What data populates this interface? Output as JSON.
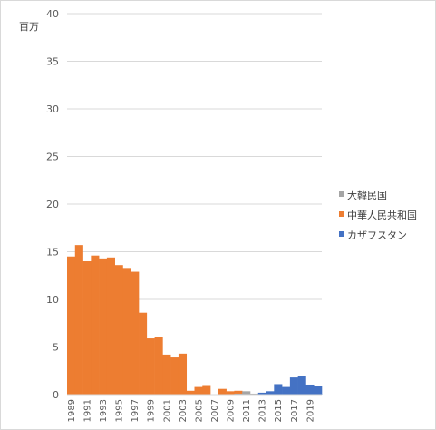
{
  "chart_data": {
    "type": "bar",
    "stacked": true,
    "ylabel": "百万",
    "ylim": [
      0,
      40
    ],
    "yticks": [
      0,
      5,
      10,
      15,
      20,
      25,
      30,
      35,
      40
    ],
    "grid": true,
    "legend_position": "right",
    "x": [
      1989,
      1990,
      1991,
      1992,
      1993,
      1994,
      1995,
      1996,
      1997,
      1998,
      1999,
      2000,
      2001,
      2002,
      2003,
      2004,
      2005,
      2006,
      2007,
      2008,
      2009,
      2010,
      2011,
      2012,
      2013,
      2014,
      2015,
      2016,
      2017,
      2018,
      2019,
      2020
    ],
    "xtick_labels": [
      "1989",
      "1991",
      "1993",
      "1995",
      "1997",
      "1999",
      "2001",
      "2003",
      "2005",
      "2007",
      "2009",
      "2011",
      "2013",
      "2015",
      "2017",
      "2019"
    ],
    "series": [
      {
        "name": "大韓民国",
        "color": "#a5a5a5",
        "values": [
          0,
          0,
          0,
          0,
          0,
          0,
          0,
          0,
          0,
          0,
          0,
          0,
          0,
          0,
          0,
          0,
          0,
          0,
          0,
          0,
          0.05,
          0.1,
          0.35,
          0.1,
          0,
          0,
          0,
          0,
          0,
          0,
          0,
          0
        ]
      },
      {
        "name": "中華人民共和国",
        "color": "#ed7d31",
        "values": [
          14.5,
          15.7,
          14.0,
          14.6,
          14.3,
          14.4,
          13.6,
          13.3,
          12.9,
          8.6,
          5.9,
          6.0,
          4.2,
          3.9,
          4.3,
          0.4,
          0.8,
          1.0,
          0,
          0.6,
          0.3,
          0.3,
          0,
          0,
          0,
          0,
          0,
          0,
          0,
          0,
          0,
          0
        ]
      },
      {
        "name": "カザフスタン",
        "color": "#4472c4",
        "values": [
          0,
          0,
          0,
          0,
          0,
          0,
          0,
          0,
          0,
          0,
          0,
          0,
          0,
          0,
          0,
          0,
          0,
          0,
          0,
          0,
          0,
          0,
          0,
          0,
          0.2,
          0.35,
          1.1,
          0.8,
          1.8,
          2.0,
          1.05,
          0.95
        ]
      }
    ]
  }
}
